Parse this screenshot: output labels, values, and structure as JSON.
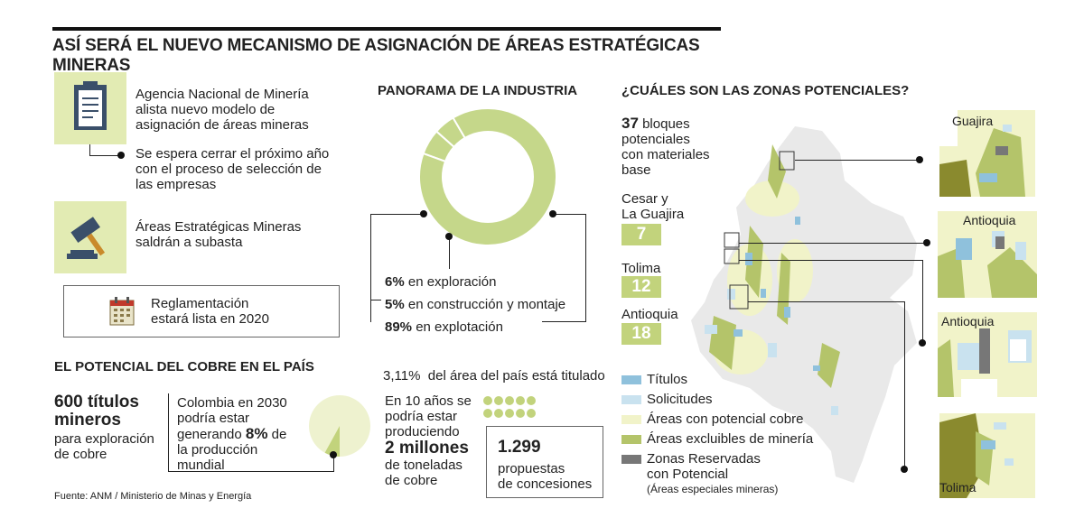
{
  "header": {
    "title": "ASÍ SERÁ EL NUEVO MECANISMO DE ASIGNACIÓN DE ÁREAS ESTRATÉGICAS MINERAS"
  },
  "steps": {
    "agency_line1": "Agencia Nacional de Minería",
    "agency_line2": "alista nuevo modelo de",
    "agency_line3": "asignación de áreas mineras",
    "close_line1": "Se espera cerrar el próximo año",
    "close_line2": "con el proceso de selección de",
    "close_line3": "las empresas",
    "auction_line1": "Áreas Estratégicas Mineras",
    "auction_line2": "saldrán a subasta",
    "reg_line1": "Reglamentación",
    "reg_line2": "estará lista en 2020"
  },
  "copper": {
    "heading": "EL POTENCIAL DEL COBRE EN EL PAÍS",
    "titles_big1": "600 títulos",
    "titles_big2": "mineros",
    "titles_small1": "para exploración",
    "titles_small2": "de cobre",
    "col_line1": "Colombia en 2030",
    "col_line2": "podría estar",
    "col_line3a": "generando ",
    "col_line3b": "8%",
    "col_line3c": " de",
    "col_line4": "la producción",
    "col_line5": "mundial",
    "share_pct": 8
  },
  "source": "Fuente: ANM / Ministerio de Minas y Energía",
  "industry": {
    "heading": "PANORAMA DE LA INDUSTRIA",
    "area_value": "3,11%",
    "area_text": "del área del país está titulado",
    "ten_line1": "En 10 años se",
    "ten_line2": "podría estar",
    "ten_line3": "produciendo",
    "ten_big": "2 millones",
    "ten_line4": "de toneladas",
    "ten_line5": "de cobre",
    "proposals_value": "1.299",
    "proposals_line1": "propuestas",
    "proposals_line2": "de concesiones"
  },
  "chart_data": {
    "type": "pie",
    "variant": "donut",
    "title": "PANORAMA DE LA INDUSTRIA",
    "labels": [
      "6%",
      "5%",
      "89%"
    ],
    "label_texts": [
      " en exploración",
      " en construcción y montaje",
      " en explotación"
    ],
    "categories": [
      "exploración",
      "construcción y montaje",
      "explotación"
    ],
    "values": [
      6,
      5,
      89
    ],
    "color": "#c5d78a"
  },
  "zones": {
    "heading": "¿CUÁLES SON LAS ZONAS POTENCIALES?",
    "blocks_value": "37",
    "blocks_line1": " bloques",
    "blocks_line2": "potenciales",
    "blocks_line3": "con materiales",
    "blocks_line4": "base",
    "regions": [
      {
        "name_line1": "Cesar y",
        "name_line2": "La Guajira",
        "count": "7"
      },
      {
        "name_line1": "Tolima",
        "count": "12"
      },
      {
        "name_line1": "Antioquia",
        "count": "18"
      }
    ],
    "insets": [
      "Guajira",
      "Antioquia",
      "Antioquia",
      "Tolima"
    ]
  },
  "legend": {
    "items": [
      {
        "label": "Títulos",
        "color": "#8fc1dc"
      },
      {
        "label": "Solicitudes",
        "color": "#c9e2ef"
      },
      {
        "label": "Áreas con potencial cobre",
        "color": "#f1f3c9"
      },
      {
        "label": "Áreas excluibles de minería",
        "color": "#b4c46a"
      }
    ],
    "reserved_line1": "Zonas Reservadas",
    "reserved_line2": "con Potencial",
    "reserved_note": "(Áreas especiales mineras)",
    "reserved_color": "#777777"
  },
  "colors": {
    "accent_green": "#c2d37c",
    "icon_bg": "#e2ebb3",
    "map_gray": "#e6e6e6",
    "dark_olive": "#8a8a2e"
  }
}
